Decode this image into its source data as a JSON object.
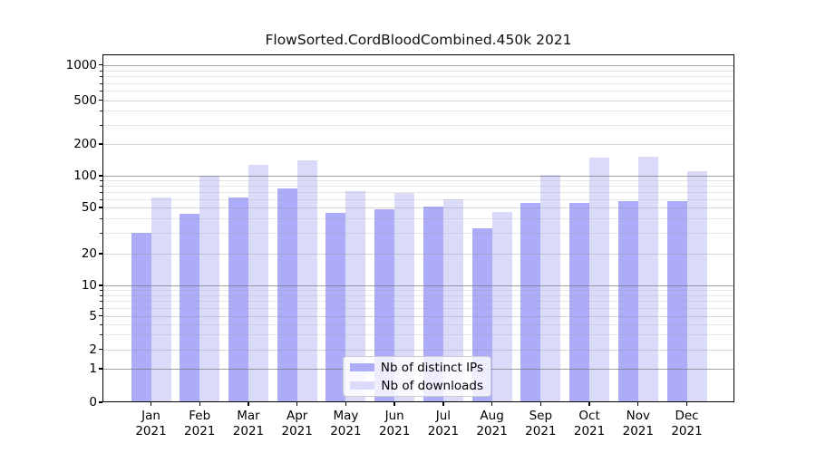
{
  "chart_data": {
    "type": "bar",
    "title": "FlowSorted.CordBloodCombined.450k 2021",
    "year_label": "2021",
    "months": [
      "Jan",
      "Feb",
      "Mar",
      "Apr",
      "May",
      "Jun",
      "Jul",
      "Aug",
      "Sep",
      "Oct",
      "Nov",
      "Dec"
    ],
    "series": [
      {
        "name": "Nb of distinct IPs",
        "color": "#acacf8",
        "values": [
          30,
          44,
          62,
          76,
          45,
          48,
          51,
          33,
          55,
          55,
          57,
          57
        ]
      },
      {
        "name": "Nb of downloads",
        "color": "#dadaf9",
        "values": [
          62,
          101,
          128,
          140,
          72,
          68,
          60,
          46,
          103,
          148,
          151,
          110
        ]
      }
    ],
    "y_axis": {
      "scale": "log-like (0 baseline)",
      "tick_labels": [
        "0",
        "1",
        "2",
        "5",
        "10",
        "20",
        "50",
        "100",
        "200",
        "500",
        "1000"
      ],
      "ticks": [
        0,
        1,
        2,
        5,
        10,
        20,
        50,
        100,
        200,
        500,
        1000
      ],
      "major_gridlines": [
        1,
        10,
        100,
        1000
      ],
      "ylim": [
        0,
        1400
      ]
    },
    "x_axis": {
      "tick_style": "two-line month + year"
    },
    "legend": {
      "position": "lower-center",
      "entries": [
        "Nb of distinct IPs",
        "Nb of downloads"
      ]
    },
    "grid": "on (drawn over bars)",
    "background": "#ffffff"
  }
}
